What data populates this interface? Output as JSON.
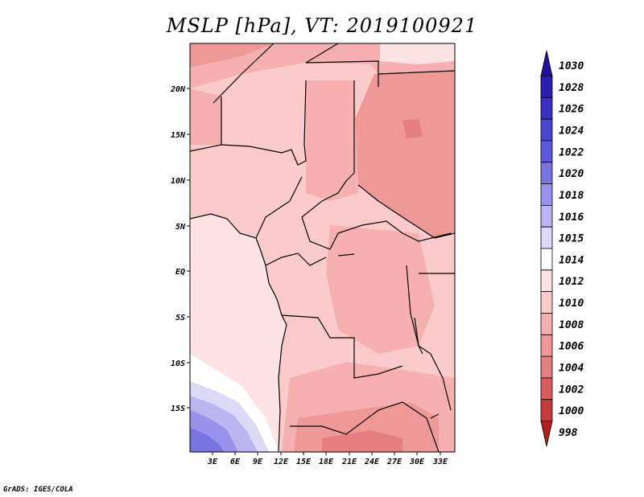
{
  "title": "MSLP [hPa], VT: 2019100921",
  "credit": "GrADS: IGES/COLA",
  "colors": {
    "ocean": "#fde3e3",
    "land_light": "#fbcaca",
    "land_mid": "#f6b0b0",
    "land_dark": "#ef9898",
    "land_darker": "#e57f7f",
    "borders": "#000000"
  },
  "map": {
    "lat_labels": [
      "20N",
      "15N",
      "10N",
      "5N",
      "EQ",
      "5S",
      "10S",
      "15S"
    ],
    "lon_labels": [
      "3E",
      "6E",
      "9E",
      "12E",
      "15E",
      "18E",
      "21E",
      "24E",
      "27E",
      "30E",
      "33E"
    ]
  },
  "legend": {
    "levels": [
      {
        "label": "1030",
        "color": "#22119a"
      },
      {
        "label": "1028",
        "color": "#2a1fb0"
      },
      {
        "label": "1026",
        "color": "#3a31c2"
      },
      {
        "label": "1024",
        "color": "#4a45cf"
      },
      {
        "label": "1022",
        "color": "#5e59da"
      },
      {
        "label": "1020",
        "color": "#7a74e3"
      },
      {
        "label": "1018",
        "color": "#9992ea"
      },
      {
        "label": "1016",
        "color": "#bbb6f1"
      },
      {
        "label": "1015",
        "color": "#dcd9f7"
      },
      {
        "label": "1014",
        "color": "#ffffff"
      },
      {
        "label": "1012",
        "color": "#fde3e3"
      },
      {
        "label": "1010",
        "color": "#fbcaca"
      },
      {
        "label": "1008",
        "color": "#f6b0b0"
      },
      {
        "label": "1006",
        "color": "#ef9898"
      },
      {
        "label": "1004",
        "color": "#e57f7f"
      },
      {
        "label": "1002",
        "color": "#d85d5d"
      },
      {
        "label": "1000",
        "color": "#c63c3c"
      },
      {
        "label": "998",
        "color": "#b02020"
      }
    ]
  }
}
